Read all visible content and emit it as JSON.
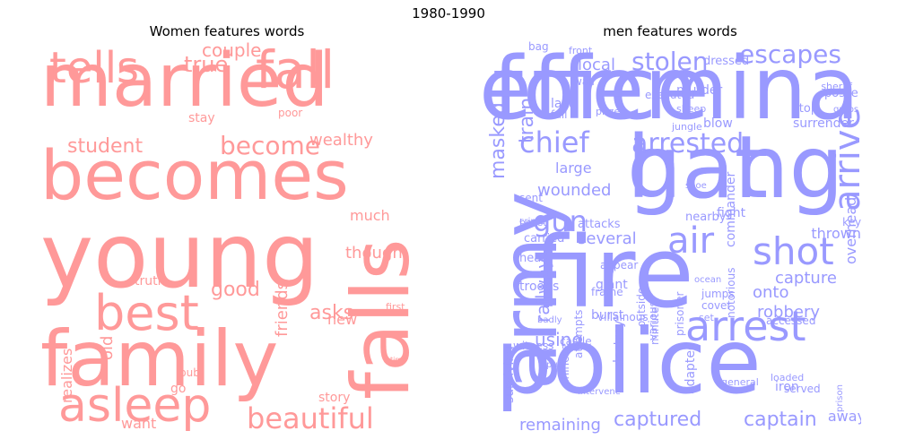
{
  "figure": {
    "suptitle": "1980-1990"
  },
  "chart_data": [
    {
      "type": "wordcloud",
      "title": "Women features words",
      "color": "#ff9999",
      "words": [
        "married",
        "becomes",
        "young",
        "family",
        "falls",
        "fall",
        "tells",
        "best",
        "asleep",
        "beautiful",
        "become",
        "student",
        "good",
        "true",
        "couple",
        "asks",
        "friends",
        "wealthy",
        "though",
        "much",
        "new",
        "truth",
        "old",
        "stay",
        "poor",
        "story",
        "want",
        "realizes",
        "pub",
        "first",
        "go",
        "time"
      ]
    },
    {
      "type": "wordcloud",
      "title": "men features words",
      "color": "#9999ff",
      "words": [
        "force",
        "gang",
        "police",
        "fire",
        "army",
        "arrest",
        "shot",
        "air",
        "arrive",
        "chief",
        "arrested",
        "escapes",
        "stolen",
        "local",
        "gun",
        "masked",
        "train",
        "wounded",
        "large",
        "captured",
        "captain",
        "remaining",
        "using",
        "several",
        "railway",
        "capture",
        "onto",
        "robbery",
        "thrown",
        "overhead",
        "commander",
        "fight",
        "nearby",
        "attacks",
        "carried",
        "beast",
        "crime",
        "head",
        "troops",
        "burst",
        "giant",
        "frame",
        "appear",
        "surviving",
        "witness",
        "destroy",
        "prisoner",
        "various",
        "chinese",
        "villainous",
        "outside",
        "jumps",
        "cover",
        "ocean",
        "set",
        "loaded",
        "iron",
        "served",
        "away",
        "adapted",
        "general",
        "accessed",
        "key",
        "murder",
        "sheep",
        "blow",
        "surrender",
        "stop",
        "posse",
        "sheriff",
        "grabs",
        "dressed",
        "executed",
        "prize",
        "last",
        "full",
        "bag",
        "front",
        "wall",
        "jungle",
        "sent",
        "minute",
        "attempts",
        "castle",
        "pub",
        "intervene",
        "badly",
        "prison",
        "notorious",
        "shoe",
        "effeminate",
        "hat"
      ]
    }
  ]
}
